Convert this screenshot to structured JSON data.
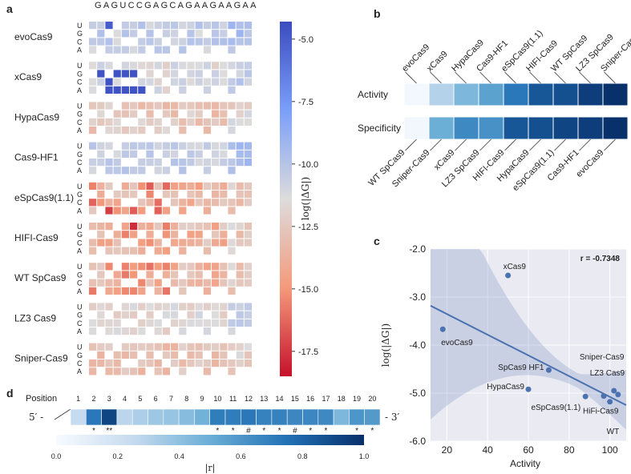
{
  "panel_labels": {
    "a": "a",
    "b": "b",
    "c": "c",
    "d": "d"
  },
  "chart_data": [
    {
      "id": "a",
      "type": "heatmap",
      "title": "",
      "sequence": "GAGUCCGAGCAGAAGAAGAA",
      "nucleotides": [
        "U",
        "G",
        "C",
        "A"
      ],
      "variants": [
        "evoCas9",
        "xCas9",
        "HypaCas9",
        "Cas9-HF1",
        "eSpCas9(1.1)",
        "HIFI-Cas9",
        "WT SpCas9",
        "LZ3 Cas9",
        "Sniper-Cas9"
      ],
      "colorbar": {
        "label": "log(|ΔG|)",
        "range": [
          -18.5,
          -4.3
        ],
        "ticks": [
          -5.0,
          -7.5,
          -10.0,
          -12.5,
          -15.0,
          -17.5
        ],
        "tick_labels": [
          "-5.0",
          "-7.5",
          "-10.0",
          "-12.5",
          "-15.0",
          "-17.5"
        ]
      }
    },
    {
      "id": "b",
      "type": "heatmap",
      "rows": [
        "Activity",
        "Specificity"
      ],
      "activity_order": [
        "evoCas9",
        "xCas9",
        "HypaCas9",
        "Cas9-HF1",
        "eSpCas9(1.1)",
        "HIFI-Cas9",
        "WT SpCas9",
        "LZ3 SpCas9",
        "Sniper-Cas9"
      ],
      "activity_values": [
        0.02,
        0.3,
        0.45,
        0.55,
        0.72,
        0.85,
        0.88,
        0.95,
        1.0
      ],
      "specificity_order": [
        "WT SpCas9",
        "Sniper-Cas9",
        "xCas9",
        "LZ3 SpCas9",
        "HIFI-Cas9",
        "HypaCas9",
        "eSpCas9(1.1)",
        "Cas9-HF1",
        "evoCas9"
      ],
      "specificity_values": [
        0.03,
        0.5,
        0.65,
        0.62,
        0.85,
        0.88,
        0.92,
        0.95,
        1.0
      ]
    },
    {
      "id": "c",
      "type": "scatter",
      "xlabel": "Activity",
      "ylabel": "log(|ΔG|)",
      "xlim": [
        12,
        108
      ],
      "ylim": [
        -6.0,
        -2.0
      ],
      "xticks": [
        20,
        40,
        60,
        80,
        100
      ],
      "yticks": [
        -2.0,
        -3.0,
        -4.0,
        -5.0,
        -6.0
      ],
      "xtick_labels": [
        "20",
        "40",
        "60",
        "80",
        "100"
      ],
      "ytick_labels": [
        "-2.0",
        "-3.0",
        "-4.0",
        "-5.0",
        "-6.0"
      ],
      "annotation": "r = -0.7348",
      "fit": {
        "x0": 12,
        "y0": -3.18,
        "x1": 108,
        "y1": -5.25
      },
      "points": [
        {
          "label": "evoCas9",
          "x": 18,
          "y": -3.67
        },
        {
          "label": "xCas9",
          "x": 50,
          "y": -2.55
        },
        {
          "label": "HypaCas9",
          "x": 60,
          "y": -4.92
        },
        {
          "label": "SpCas9 HF1",
          "x": 70,
          "y": -4.52
        },
        {
          "label": "eSpCas9(1.1)",
          "x": 88,
          "y": -5.07
        },
        {
          "label": "HiFi-Cas9",
          "x": 97,
          "y": -5.06
        },
        {
          "label": "WT",
          "x": 100,
          "y": -5.18
        },
        {
          "label": "LZ3 Cas9",
          "x": 102,
          "y": -4.95
        },
        {
          "label": "Sniper-Cas9",
          "x": 104,
          "y": -5.03
        }
      ]
    },
    {
      "id": "d",
      "type": "heatmap",
      "position_label": "Position",
      "left_label": "5′ -",
      "right_label": "- 3′",
      "positions": [
        1,
        2,
        3,
        4,
        5,
        6,
        7,
        8,
        9,
        10,
        11,
        12,
        13,
        14,
        15,
        16,
        17,
        18,
        19,
        20
      ],
      "position_labels": [
        "1",
        "2",
        "3",
        "4",
        "5",
        "6",
        "7",
        "8",
        "9",
        "10",
        "11",
        "12",
        "13",
        "14",
        "15",
        "16",
        "17",
        "18",
        "19",
        "20"
      ],
      "values": [
        0.25,
        0.72,
        0.92,
        0.28,
        0.32,
        0.36,
        0.38,
        0.42,
        0.48,
        0.7,
        0.7,
        0.72,
        0.68,
        0.68,
        0.66,
        0.66,
        0.65,
        0.45,
        0.6,
        0.58
      ],
      "significance": [
        "",
        "*",
        "**",
        "",
        "",
        "",
        "",
        "",
        "",
        "*",
        "*",
        "#",
        "*",
        "*",
        "#",
        "*",
        "*",
        "",
        "*",
        "*"
      ],
      "colorbar": {
        "label": "|r|",
        "range": [
          0,
          1
        ],
        "ticks": [
          0.0,
          0.2,
          0.4,
          0.6,
          0.8,
          1.0
        ],
        "tick_labels": [
          "0.0",
          "0.2",
          "0.4",
          "0.6",
          "0.8",
          "1.0"
        ]
      }
    }
  ]
}
